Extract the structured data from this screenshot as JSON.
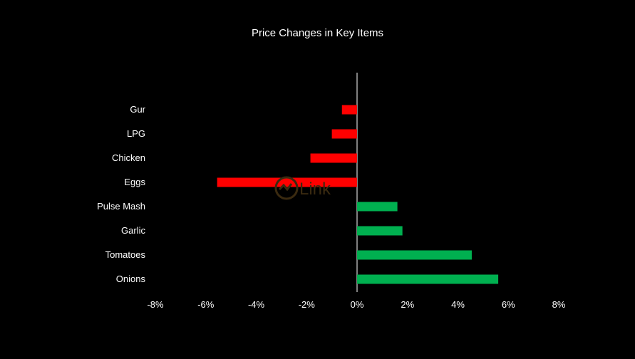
{
  "chart_data": {
    "type": "bar",
    "orientation": "horizontal",
    "title": "Price Changes in Key Items",
    "categories": [
      "Gur",
      "LPG",
      "Chicken",
      "Eggs",
      "Pulse Mash",
      "Garlic",
      "Tomatoes",
      "Onions"
    ],
    "values": [
      -0.6,
      -1.0,
      -1.85,
      -5.55,
      1.6,
      1.8,
      4.55,
      5.6
    ],
    "xlim": [
      -8,
      8
    ],
    "xticks": [
      "-8%",
      "-6%",
      "-4%",
      "-2%",
      "0%",
      "2%",
      "4%",
      "6%",
      "8%"
    ],
    "xlabel": "",
    "ylabel": "",
    "grid": false,
    "colors": {
      "positive": "#00b050",
      "negative": "#ff0000",
      "background": "#000000",
      "text": "#ffffff",
      "axis": "#ffffff"
    },
    "watermark_text": "Link"
  }
}
